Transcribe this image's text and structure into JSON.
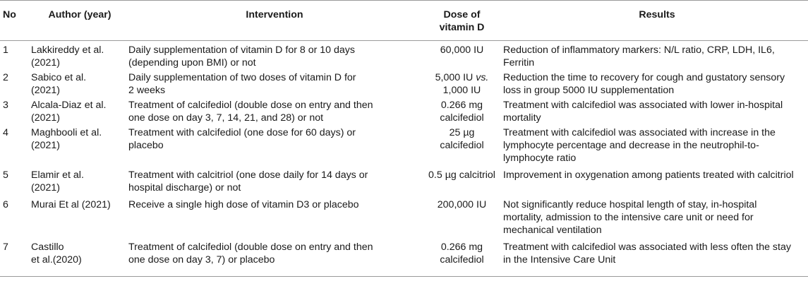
{
  "headers": {
    "no": "No",
    "author": "Author (year)",
    "intervention": "Intervention",
    "dose": "Dose of\nvitamin D",
    "results": "Results"
  },
  "rows": [
    {
      "no": "1",
      "author": "Lakkireddy et al.\n(2021)",
      "intervention": "Daily supplementation of vitamin D for 8 or 10 days\n(depending upon BMI) or not",
      "dose": "60,000 IU",
      "results": "Reduction of inflammatory markers: N/L ratio, CRP, LDH, IL6,\nFerritin"
    },
    {
      "no": "2",
      "author": "Sabico et al.\n(2021)",
      "intervention": "Daily supplementation of two doses of vitamin D for\n2 weeks",
      "dose_pre": "5,000 IU ",
      "dose_italic": "vs.",
      "dose_post": "1,000 IU",
      "results": "Reduction the time to recovery for cough and gustatory sensory\nloss in group 5000 IU supplementation"
    },
    {
      "no": "3",
      "author": "Alcala-Diaz et al.\n(2021)",
      "intervention": "Treatment of calcifediol (double dose on entry and then\none dose on day 3, 7, 14, 21, and 28) or not",
      "dose": "0.266 mg\ncalcifediol",
      "results": "Treatment with calcifediol was associated with lower in-hospital\nmortality"
    },
    {
      "no": "4",
      "author": "Maghbooli et al.\n(2021)",
      "intervention": "Treatment with calcifediol (one dose for 60 days) or\nplacebo",
      "dose": "25 µg\ncalcifediol",
      "results": "Treatment with calcifediol was associated with increase in the\nlymphocyte percentage and decrease in the neutrophil-to-\nlymphocyte ratio"
    },
    {
      "no": "5",
      "author": "Elamir et al.\n(2021)",
      "intervention": "Treatment with calcitriol (one dose daily for 14 days or\nhospital discharge) or not",
      "dose": "0.5 µg calcitriol",
      "results": "Improvement in oxygenation among patients treated with calcitriol"
    },
    {
      "no": "6",
      "author": "Murai Et al (2021)",
      "intervention": "Receive a single high dose of vitamin D3 or placebo",
      "dose": "200,000 IU",
      "results": "Not significantly reduce hospital length of stay, in-hospital\nmortality, admission to the intensive care unit or need for\nmechanical ventilation"
    },
    {
      "no": "7",
      "author": "Castillo\net al.(2020)",
      "intervention": "Treatment of calcifediol (double dose on entry and then\none dose on day 3, 7) or placebo",
      "dose": "0.266 mg\ncalcifediol",
      "results": "Treatment with calcifediol was associated with less often the stay\nin the Intensive Care Unit"
    }
  ]
}
